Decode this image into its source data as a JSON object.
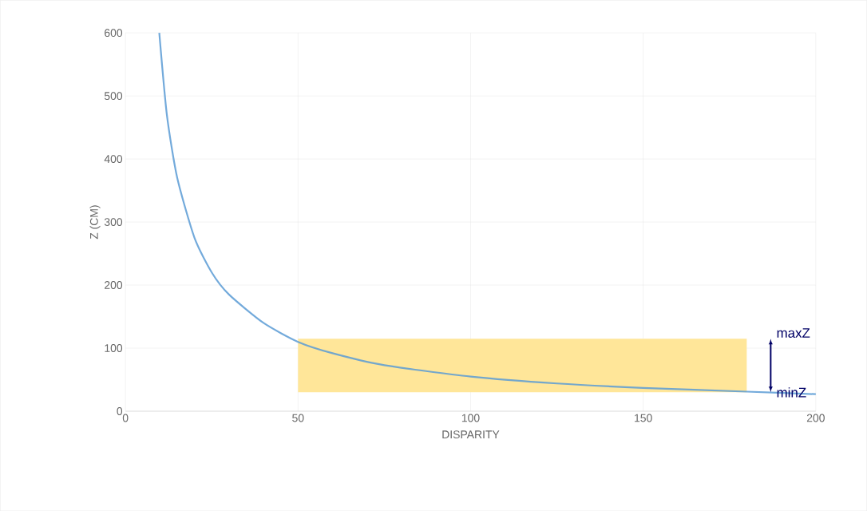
{
  "chart_data": {
    "type": "line",
    "xlabel": "DISPARITY",
    "ylabel": "Z (CM)",
    "x": [
      9.8,
      12,
      15,
      20,
      25,
      30,
      40,
      50,
      60,
      75,
      100,
      125,
      150,
      180,
      200
    ],
    "values": [
      600,
      470,
      370,
      275,
      220,
      185,
      140,
      110,
      92,
      73,
      55,
      44,
      37,
      31,
      27
    ],
    "color": "#5b9bd5",
    "xlim": [
      0,
      200
    ],
    "xticks": [
      0,
      50,
      100,
      150,
      200
    ],
    "ylim": [
      0,
      600
    ],
    "yticks": [
      0,
      100,
      200,
      300,
      400,
      500,
      600
    ],
    "grid": true,
    "bands": [
      {
        "axis": "y",
        "from": 30,
        "to": 115,
        "color": "#ffe699"
      }
    ],
    "annotations": [
      {
        "text": "maxZ",
        "x": 180,
        "y": 115
      },
      {
        "text": "minZ",
        "x": 180,
        "y": 30
      }
    ]
  }
}
